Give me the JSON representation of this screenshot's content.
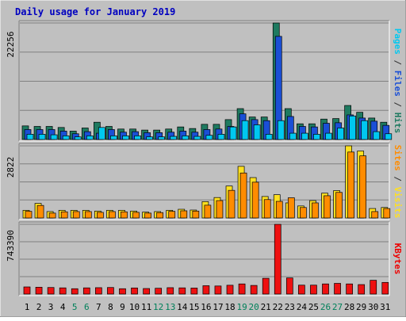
{
  "chart_data": {
    "type": "bar",
    "title": "Daily usage for January 2019",
    "categories": [
      "1",
      "2",
      "3",
      "4",
      "5",
      "6",
      "7",
      "8",
      "9",
      "10",
      "11",
      "12",
      "13",
      "14",
      "15",
      "16",
      "17",
      "18",
      "19",
      "20",
      "21",
      "22",
      "23",
      "24",
      "25",
      "26",
      "27",
      "28",
      "29",
      "30",
      "31"
    ],
    "weekend_days": [
      5,
      6,
      12,
      13,
      19,
      20,
      26,
      27
    ],
    "panels": [
      {
        "name": "hits-files-pages",
        "max_label": "22256",
        "ylim": [
          0,
          22256
        ],
        "right_labels": [
          {
            "text": "Pages",
            "color": "#00c8f0"
          },
          {
            "text": " / ",
            "color": "#333333"
          },
          {
            "text": "Files",
            "color": "#1a4fd6"
          },
          {
            "text": " / ",
            "color": "#333333"
          },
          {
            "text": "Hits",
            "color": "#1e7a60"
          }
        ],
        "series": [
          {
            "name": "Hits",
            "color": "#1e7a60",
            "values": [
              2600,
              2500,
              2500,
              2300,
              1600,
              2200,
              3300,
              2500,
              2000,
              2000,
              1800,
              1800,
              2000,
              2400,
              2100,
              2900,
              2900,
              3800,
              5900,
              4300,
              4300,
              22256,
              5900,
              3000,
              3000,
              3900,
              4000,
              6500,
              5200,
              4100,
              3300
            ]
          },
          {
            "name": "Files",
            "color": "#1a4fd6",
            "values": [
              1900,
              1900,
              1900,
              1600,
              1100,
              1500,
              1200,
              1900,
              1400,
              1500,
              1300,
              1300,
              1400,
              1600,
              1400,
              1900,
              2000,
              2500,
              4900,
              3800,
              3600,
              19700,
              4400,
              2500,
              2400,
              3100,
              3200,
              4700,
              4100,
              3500,
              2700
            ]
          },
          {
            "name": "Pages",
            "color": "#00c8f0",
            "values": [
              1000,
              1000,
              900,
              700,
              500,
              700,
              2300,
              700,
              700,
              700,
              500,
              500,
              600,
              700,
              600,
              800,
              1000,
              2400,
              3600,
              2800,
              1000,
              3600,
              1200,
              1200,
              1000,
              1200,
              2200,
              4500,
              3600,
              1500,
              1100
            ]
          }
        ]
      },
      {
        "name": "visits-sites",
        "max_label": "2822",
        "ylim": [
          0,
          2822
        ],
        "right_labels": [
          {
            "text": "Sites",
            "color": "#ff8c00"
          },
          {
            "text": " / ",
            "color": "#333333"
          },
          {
            "text": "Visits",
            "color": "#ffe020"
          }
        ],
        "series": [
          {
            "name": "Visits",
            "color": "#ffe020",
            "values": [
              300,
              570,
              250,
              300,
              300,
              300,
              270,
              300,
              300,
              270,
              230,
              250,
              300,
              340,
              310,
              640,
              800,
              1250,
              2020,
              1580,
              840,
              910,
              590,
              470,
              680,
              970,
              1070,
              2822,
              2620,
              370,
              410
            ]
          },
          {
            "name": "Sites",
            "color": "#ff8c00",
            "values": [
              260,
              490,
              190,
              240,
              250,
              250,
              220,
              250,
              240,
              220,
              190,
              210,
              260,
              280,
              270,
              500,
              680,
              1080,
              1760,
              1400,
              720,
              650,
              790,
              410,
              590,
              870,
              1000,
              2580,
              2430,
              250,
              370
            ]
          }
        ]
      },
      {
        "name": "kbytes",
        "max_label": "743390",
        "ylim": [
          0,
          743390
        ],
        "right_labels": [
          {
            "text": "KBytes",
            "color": "#ee0000"
          }
        ],
        "series": [
          {
            "name": "KBytes",
            "color": "#ee1010",
            "values": [
              76000,
              73000,
              70000,
              66000,
              57000,
              66000,
              68000,
              70000,
              57000,
              65000,
              59000,
              62000,
              68000,
              66000,
              64000,
              89000,
              86000,
              94000,
              108000,
              92000,
              168000,
              743390,
              172000,
              95000,
              95000,
              108000,
              114000,
              108000,
              101000,
              147000,
              124000
            ]
          }
        ]
      }
    ]
  }
}
